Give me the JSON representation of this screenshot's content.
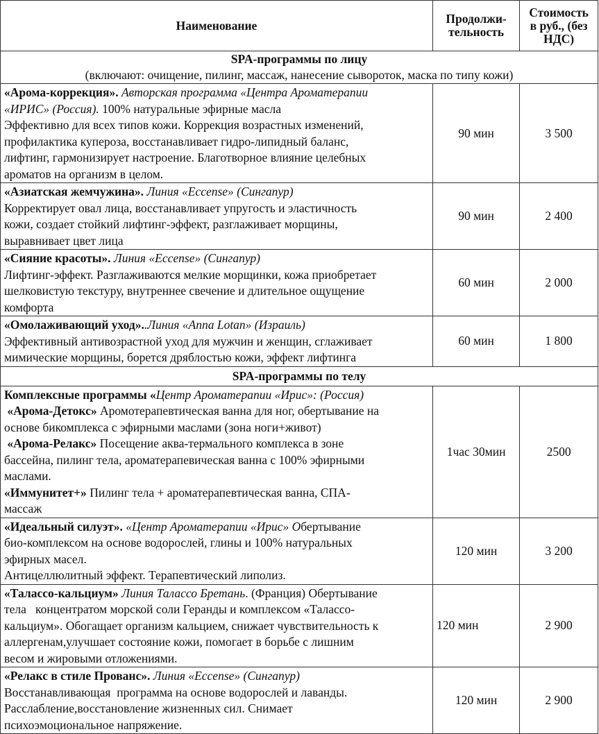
{
  "header": {
    "name": "Наименование",
    "duration": "Продолжи-\nтельность",
    "price": "Стоимость\nв руб., (без\nНДС)"
  },
  "sections": [
    {
      "title": "SPA-программы по лицу",
      "subtitle": "(включают: очищение, пилинг, массаж, нанесение сывороток, маска по типу кожи)",
      "rows": [
        {
          "duration": "90 мин",
          "price": "3 500",
          "lines": [
            [
              {
                "t": "«Арома-коррекция».",
                "s": "b"
              },
              {
                "t": " Авторская программа «Центра Ароматерапии",
                "s": "i"
              }
            ],
            [
              {
                "t": "«ИРИС» (Россия).",
                "s": "i"
              },
              {
                "t": " 100% натуральные эфирные масла",
                "s": ""
              }
            ],
            [
              {
                "t": "Эффективно для всех типов кожи. Коррекция возрастных изменений,",
                "s": ""
              }
            ],
            [
              {
                "t": "профилактика купероза, восстанавливает гидро-липидный баланс,",
                "s": ""
              }
            ],
            [
              {
                "t": "лифтинг, гармонизирует настроение. Благотворное влияние целебных",
                "s": ""
              }
            ],
            [
              {
                "t": "ароматов на организм в целом.",
                "s": ""
              }
            ]
          ]
        },
        {
          "duration": "90 мин",
          "price": "2 400",
          "lines": [
            [
              {
                "t": "«Азиатская жемчужина».",
                "s": "b"
              },
              {
                "t": " Линия «Eccense» (Сингапур)",
                "s": "i"
              }
            ],
            [
              {
                "t": "Корректирует овал лица, восстанавливает упругость и эластичность",
                "s": ""
              }
            ],
            [
              {
                "t": "кожи, создает стойкий лифтинг-эффект, разглаживает морщины,",
                "s": ""
              }
            ],
            [
              {
                "t": "выравнивает цвет лица",
                "s": ""
              }
            ]
          ]
        },
        {
          "duration": "60 мин",
          "price": "2 000",
          "lines": [
            [
              {
                "t": "«Сияние красоты».",
                "s": "b"
              },
              {
                "t": " Линия «Eccense» (Сингапур)",
                "s": "i"
              }
            ],
            [
              {
                "t": "Лифтинг-эффект. Разглаживаются мелкие морщинки, кожа приобретает",
                "s": ""
              }
            ],
            [
              {
                "t": "шелковистую текстуру, внутреннее свечение и длительное ощущение",
                "s": ""
              }
            ],
            [
              {
                "t": "комфорта",
                "s": ""
              }
            ]
          ]
        },
        {
          "duration": "60 мин",
          "price": "1 800",
          "lines": [
            [
              {
                "t": "«Омолаживающий уход».",
                "s": "b"
              },
              {
                "t": ".Линия «Anna Lotan» (Израиль)",
                "s": "i"
              }
            ],
            [
              {
                "t": "Эффективный антивозрастной уход для мужчин и женщин, сглаживает",
                "s": ""
              }
            ],
            [
              {
                "t": "мимические морщины, борется дряблостью кожи, эффект лифтинга",
                "s": ""
              }
            ]
          ]
        }
      ]
    },
    {
      "title": "SPA-программы по телу",
      "subtitle": "",
      "rows": [
        {
          "duration": "1час 30мин",
          "price": "2500",
          "lines": [
            [
              {
                "t": "Комплексные программы «",
                "s": "b"
              },
              {
                "t": "Центр Ароматерапии «Ирис»: (Россия)",
                "s": "i"
              }
            ],
            [
              {
                "t": " «Арома-Детокс»",
                "s": "b"
              },
              {
                "t": " Аромотерапевтическая ванна для ног, обертывание на",
                "s": ""
              }
            ],
            [
              {
                "t": "основе бикомплекса с эфирными маслами (зона ноги+живот)",
                "s": ""
              }
            ],
            [
              {
                "t": " «Арома-Релакс»",
                "s": "b"
              },
              {
                "t": " Посещение аква-термального комплекса в зоне",
                "s": ""
              }
            ],
            [
              {
                "t": "бассейна, пилинг тела, ароматерапевическая ванна с 100% эфирными",
                "s": ""
              }
            ],
            [
              {
                "t": "маслами.",
                "s": ""
              }
            ],
            [
              {
                "t": "«Иммунитет+»",
                "s": "b"
              },
              {
                "t": " Пилинг тела + ароматерапевтическая ванна, СПА-",
                "s": ""
              }
            ],
            [
              {
                "t": "массаж",
                "s": ""
              }
            ]
          ]
        },
        {
          "duration": "120 мин",
          "price": "3 200",
          "lines": [
            [
              {
                "t": "«Идеальный силуэт».",
                "s": "b"
              },
              {
                "t": " «Центр Ароматерапии «Ирис» О",
                "s": "i"
              },
              {
                "t": "бертывание",
                "s": ""
              }
            ],
            [
              {
                "t": "био-комплексом на основе водорослей, глины и 100% натуральных",
                "s": ""
              }
            ],
            [
              {
                "t": "эфирных масел.",
                "s": ""
              }
            ],
            [
              {
                "t": "Антицеллюлитный эффект. Терапевтический липолиз.",
                "s": ""
              }
            ]
          ]
        },
        {
          "duration": "120 мин",
          "price": "2 900",
          "lines": [
            [
              {
                "t": "«Талассо-кальциум»",
                "s": "b"
              },
              {
                "t": " Линия Талассо Бретань",
                "s": "i"
              },
              {
                "t": ". (Франция) Обертывание",
                "s": ""
              }
            ],
            [
              {
                "t": "тела   концентратом морской соли Геранды и комплексом «Талассо-",
                "s": ""
              }
            ],
            [
              {
                "t": "кальциум». Обогащает организм кальцием, снижает чувствительность к",
                "s": ""
              }
            ],
            [
              {
                "t": "аллергенам,улучшает состояние кожи, помогает в борьбе с лишним",
                "s": ""
              }
            ],
            [
              {
                "t": "весом и жировыми отложениями.",
                "s": ""
              }
            ]
          ]
        },
        {
          "duration": "120 мин",
          "price": "2 900",
          "lines": [
            [
              {
                "t": "«Релакс в стиле Прованс».",
                "s": "b"
              },
              {
                "t": " Линия «Eccense» (Сингапур)",
                "s": "i"
              }
            ],
            [
              {
                "t": "Восстанавливающая  программа на основе водорослей и лаванды.",
                "s": ""
              }
            ],
            [
              {
                "t": "Расслабление,восстановление жизненных сил. Снимает",
                "s": ""
              }
            ],
            [
              {
                "t": "психоэмоциональное напряжение.",
                "s": ""
              }
            ]
          ]
        }
      ]
    }
  ]
}
